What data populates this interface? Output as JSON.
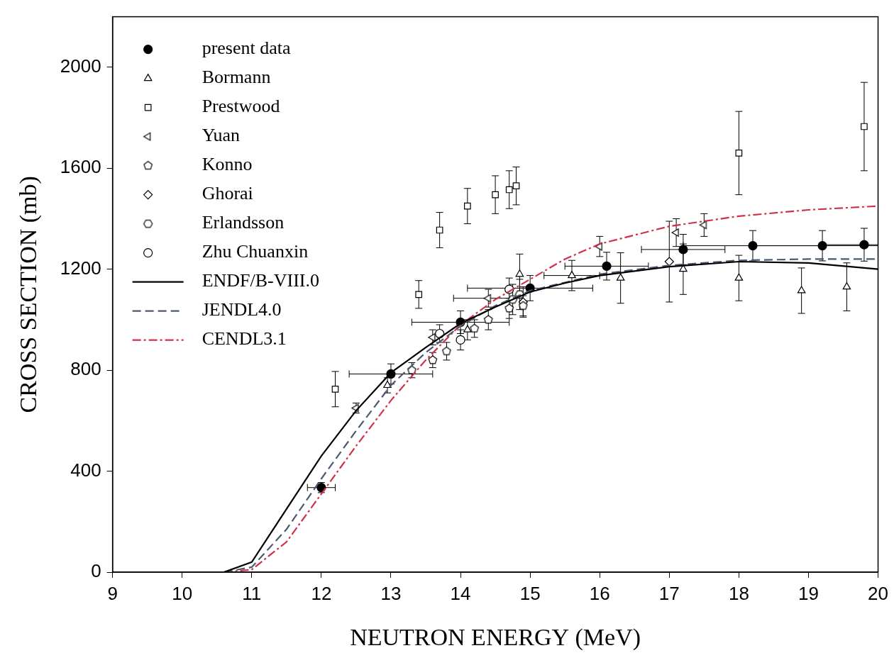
{
  "chart_data": {
    "type": "scatter",
    "x_label": "NEUTRON ENERGY (MeV)",
    "y_label": "CROSS SECTION (mb)",
    "xlim": [
      9,
      20
    ],
    "xticks": [
      9,
      10,
      11,
      12,
      13,
      14,
      15,
      16,
      17,
      18,
      19,
      20
    ],
    "ylim": [
      0,
      2200
    ],
    "yticks": [
      0,
      400,
      800,
      1200,
      1600,
      2000
    ],
    "grid": false,
    "legend": "upper left",
    "series": [
      {
        "name": "present data",
        "type": "scatter",
        "marker": "circle-filled",
        "color": "#000000",
        "x": [
          12.0,
          13.0,
          14.0,
          15.0,
          16.1,
          17.2,
          18.2,
          19.2,
          19.8
        ],
        "values": [
          335,
          785,
          990,
          1125,
          1212,
          1278,
          1293,
          1293,
          1297
        ],
        "yerr": [
          20,
          40,
          45,
          50,
          55,
          60,
          60,
          60,
          65
        ],
        "xerr": [
          0.2,
          0.6,
          0.7,
          0.9,
          0.6,
          0.6,
          1.0,
          1.0,
          0.6
        ]
      },
      {
        "name": "Bormann",
        "type": "scatter",
        "marker": "triangle",
        "color": "#000000",
        "x": [
          12.95,
          14.1,
          14.85,
          15.6,
          16.3,
          17.2,
          18.0,
          18.9,
          19.55
        ],
        "values": [
          740,
          960,
          1180,
          1175,
          1165,
          1200,
          1165,
          1115,
          1130
        ],
        "yerr": [
          30,
          40,
          80,
          60,
          100,
          100,
          90,
          90,
          95
        ],
        "xerr": [
          null,
          null,
          null,
          0.4,
          null,
          null,
          null,
          null,
          null
        ]
      },
      {
        "name": "Prestwood",
        "type": "scatter",
        "marker": "square",
        "color": "#000000",
        "x": [
          12.2,
          13.4,
          13.7,
          14.1,
          14.5,
          14.7,
          14.8,
          18.0,
          19.8
        ],
        "values": [
          725,
          1100,
          1355,
          1450,
          1495,
          1515,
          1530,
          1660,
          1765
        ],
        "yerr": [
          70,
          55,
          70,
          70,
          75,
          75,
          75,
          165,
          175
        ]
      },
      {
        "name": "Yuan",
        "type": "scatter",
        "marker": "triangle-left",
        "color": "#000000",
        "x": [
          12.5,
          13.6,
          14.4,
          16.0,
          17.1,
          17.5
        ],
        "values": [
          650,
          930,
          1085,
          1290,
          1345,
          1375
        ],
        "yerr": [
          20,
          30,
          35,
          40,
          55,
          45
        ],
        "xerr": [
          null,
          null,
          0.5,
          null,
          null,
          null
        ]
      },
      {
        "name": "Konno",
        "type": "scatter",
        "marker": "pentagon",
        "color": "#000000",
        "x": [
          13.3,
          13.6,
          13.8,
          14.2,
          14.4,
          14.7,
          14.9
        ],
        "values": [
          800,
          840,
          875,
          965,
          1000,
          1045,
          1055
        ],
        "yerr": [
          30,
          30,
          35,
          35,
          40,
          40,
          40
        ]
      },
      {
        "name": "Ghorai",
        "type": "scatter",
        "marker": "diamond",
        "color": "#000000",
        "x": [
          14.9,
          17.0
        ],
        "values": [
          1070,
          1230
        ],
        "yerr": [
          60,
          160
        ]
      },
      {
        "name": "Erlandsson",
        "type": "scatter",
        "marker": "hexagon",
        "color": "#000000",
        "x": [
          14.75,
          14.85
        ],
        "values": [
          1080,
          1100
        ],
        "yerr": [
          60,
          60
        ]
      },
      {
        "name": "Zhu Chuanxin",
        "type": "scatter",
        "marker": "circle",
        "color": "#000000",
        "x": [
          13.7,
          14.0,
          14.7
        ],
        "values": [
          945,
          920,
          1120
        ],
        "yerr": [
          35,
          40,
          45
        ]
      },
      {
        "name": "ENDF/B-VIII.0",
        "type": "line",
        "line_style": "solid",
        "color": "#000000",
        "x": [
          10.6,
          11.0,
          11.5,
          12.0,
          12.5,
          13.0,
          13.5,
          14.0,
          14.5,
          15.0,
          15.5,
          16.0,
          17.0,
          18.0,
          19.0,
          20.0
        ],
        "values": [
          0,
          40,
          250,
          460,
          640,
          790,
          890,
          985,
          1050,
          1110,
          1145,
          1175,
          1210,
          1230,
          1225,
          1200
        ]
      },
      {
        "name": "JENDL4.0",
        "type": "line",
        "line_style": "dashed",
        "color": "#4a5a70",
        "x": [
          10.6,
          11.0,
          11.5,
          12.0,
          12.5,
          13.0,
          13.5,
          14.0,
          14.5,
          15.0,
          16.0,
          17.0,
          18.0,
          19.0,
          20.0
        ],
        "values": [
          0,
          20,
          170,
          370,
          560,
          740,
          870,
          975,
          1055,
          1115,
          1180,
          1215,
          1235,
          1240,
          1240
        ]
      },
      {
        "name": "CENDL3.1",
        "type": "line",
        "line_style": "dashdot",
        "color": "#d0304a",
        "x": [
          10.6,
          11.0,
          11.5,
          12.0,
          12.5,
          13.0,
          13.5,
          14.0,
          14.5,
          15.0,
          15.5,
          16.0,
          17.0,
          18.0,
          19.0,
          20.0
        ],
        "values": [
          0,
          10,
          120,
          310,
          500,
          680,
          840,
          980,
          1080,
          1160,
          1240,
          1300,
          1370,
          1410,
          1435,
          1450
        ]
      }
    ]
  }
}
